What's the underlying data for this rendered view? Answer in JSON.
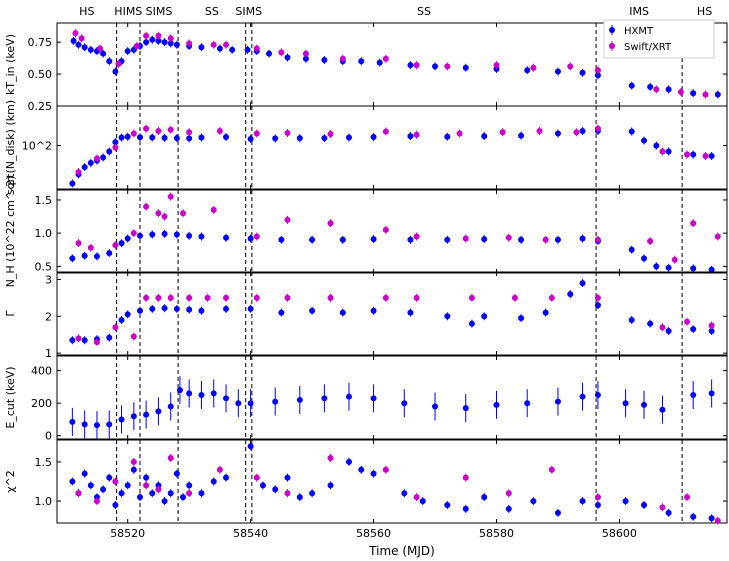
{
  "chart_data": {
    "type": "scatter",
    "xlabel": "Time (MJD)",
    "x_ticks": [
      58520,
      58540,
      58560,
      58580,
      58600
    ],
    "xlim": [
      58508.5,
      58617.5
    ],
    "states": [
      "HS",
      "HIMS",
      "SIMS",
      "SS",
      "SIMS",
      "SS",
      "IMS",
      "HS"
    ],
    "transitions_mjd": [
      58518.2,
      58522,
      58528.2,
      58539.2,
      58540.2,
      58596.2,
      58610.2
    ],
    "legend": {
      "position": "top-right",
      "entries": [
        "HXMT",
        "Swift/XRT"
      ]
    },
    "colors": {
      "HXMT": "#0000ff",
      "Swift/XRT": "#c800c8"
    },
    "panels": [
      {
        "ylabel": "kT_in (keV)",
        "ylim": [
          0.25,
          0.9
        ],
        "yticks": [
          "0.25",
          "0.50",
          "0.75"
        ],
        "ytick_values": [
          0.25,
          0.5,
          0.75
        ],
        "series": [
          {
            "name": "HXMT",
            "x": [
              58511.2,
              58512,
              58513,
              58514,
              58515,
              58516,
              58517,
              58518,
              58519,
              58520,
              58521,
              58522,
              58523,
              58524,
              58525,
              58526,
              58527,
              58528,
              58530,
              58532,
              58535,
              58537,
              58539.5,
              58541,
              58543,
              58546,
              58549,
              58552,
              58555,
              58558,
              58561,
              58566,
              58570,
              58575,
              58580,
              58585,
              58590,
              58594,
              58596.5,
              58602,
              58605,
              58608,
              58612,
              58616
            ],
            "y": [
              0.76,
              0.73,
              0.71,
              0.69,
              0.68,
              0.66,
              0.6,
              0.52,
              0.6,
              0.68,
              0.69,
              0.72,
              0.75,
              0.77,
              0.76,
              0.75,
              0.74,
              0.73,
              0.72,
              0.71,
              0.7,
              0.69,
              0.69,
              0.68,
              0.66,
              0.63,
              0.62,
              0.61,
              0.6,
              0.6,
              0.59,
              0.57,
              0.56,
              0.55,
              0.54,
              0.53,
              0.52,
              0.51,
              0.49,
              0.41,
              0.4,
              0.38,
              0.35,
              0.34
            ]
          },
          {
            "name": "Swift/XRT",
            "x": [
              58511.5,
              58512.5,
              58515.5,
              58518.5,
              58521.5,
              58523,
              58525,
              58527,
              58530,
              58534,
              58536,
              58541,
              58545,
              58549,
              58555,
              58562,
              58567,
              58572,
              58580,
              58586,
              58592,
              58596.5,
              58606,
              58610,
              58614
            ],
            "y": [
              0.82,
              0.78,
              0.7,
              0.58,
              0.72,
              0.8,
              0.8,
              0.78,
              0.74,
              0.73,
              0.73,
              0.7,
              0.67,
              0.66,
              0.62,
              0.62,
              0.57,
              0.56,
              0.57,
              0.55,
              0.56,
              0.53,
              0.38,
              0.36,
              0.34
            ]
          }
        ]
      },
      {
        "ylabel": "sqrt(N_disk) (km)",
        "log_scale": true,
        "ylim": [
          30,
          300
        ],
        "yticks": [
          "10^2"
        ],
        "ytick_values": [
          100
        ],
        "series": [
          {
            "name": "HXMT",
            "x": [
              58511,
              58512,
              58513,
              58514,
              58515,
              58516,
              58517,
              58518,
              58519,
              58520,
              58522,
              58524,
              58526,
              58528,
              58530,
              58532,
              58536,
              58540,
              58544,
              58548,
              58552,
              58556,
              58560,
              58566,
              58572,
              58578,
              58584,
              58590,
              58594,
              58596.5,
              58602,
              58604,
              58606,
              58608,
              58612,
              58615
            ],
            "y": [
              35,
              45,
              55,
              62,
              66,
              72,
              85,
              110,
              125,
              128,
              126,
              125,
              124,
              123,
              122,
              125,
              127,
              120,
              122,
              123,
              123,
              125,
              127,
              130,
              128,
              130,
              132,
              140,
              150,
              150,
              148,
              115,
              100,
              85,
              78,
              75
            ]
          },
          {
            "name": "Swift/XRT",
            "x": [
              58512,
              58515,
              58518,
              58521,
              58523,
              58525,
              58527,
              58530,
              58535,
              58541,
              58546,
              58553,
              58562,
              58567,
              58574,
              58581,
              58587,
              58593,
              58596.5,
              58607,
              58611,
              58614
            ],
            "y": [
              48,
              70,
              95,
              140,
              160,
              150,
              155,
              145,
              150,
              140,
              142,
              138,
              148,
              135,
              140,
              145,
              150,
              145,
              160,
              85,
              78,
              75
            ]
          }
        ]
      },
      {
        "ylabel": "N_H (10^22 cm^-2)",
        "ylim": [
          0.4,
          1.65
        ],
        "yticks": [
          "0.5",
          "1.0",
          "1.5"
        ],
        "ytick_values": [
          0.5,
          1.0,
          1.5
        ],
        "series": [
          {
            "name": "HXMT",
            "x": [
              58511,
              58513,
              58515,
              58517,
              58519,
              58520,
              58522,
              58524,
              58526,
              58528,
              58530,
              58532,
              58536,
              58540,
              58545,
              58550,
              58555,
              58560,
              58566,
              58572,
              58578,
              58584,
              58590,
              58594,
              58596.5,
              58602,
              58604,
              58606,
              58608,
              58612,
              58615
            ],
            "y": [
              0.62,
              0.66,
              0.65,
              0.7,
              0.85,
              0.92,
              0.96,
              0.98,
              0.99,
              0.98,
              0.96,
              0.95,
              0.93,
              0.92,
              0.9,
              0.9,
              0.9,
              0.91,
              0.9,
              0.9,
              0.91,
              0.9,
              0.9,
              0.92,
              0.88,
              0.75,
              0.62,
              0.5,
              0.48,
              0.47,
              0.45
            ]
          },
          {
            "name": "Swift/XRT",
            "x": [
              58512,
              58514,
              58518,
              58521,
              58523,
              58525,
              58526,
              58527,
              58529,
              58534,
              58541,
              58546,
              58553,
              58562,
              58567,
              58575,
              58582,
              58588,
              58596.5,
              58605,
              58609,
              58612,
              58616
            ],
            "y": [
              0.85,
              0.78,
              0.82,
              1.0,
              1.4,
              1.3,
              1.25,
              1.55,
              1.3,
              1.35,
              0.95,
              1.2,
              1.15,
              1.05,
              0.95,
              0.92,
              0.93,
              0.9,
              0.9,
              0.88,
              0.6,
              1.15,
              0.95
            ]
          }
        ]
      },
      {
        "ylabel": "Γ",
        "ylim": [
          0.95,
          3.2
        ],
        "yticks": [
          "1",
          "2",
          "3"
        ],
        "ytick_values": [
          1,
          2,
          3
        ],
        "series": [
          {
            "name": "HXMT",
            "x": [
              58511,
              58513,
              58515,
              58517,
              58519,
              58520,
              58522,
              58524,
              58526,
              58528,
              58530,
              58532,
              58536,
              58540,
              58545,
              58550,
              58555,
              58560,
              58566,
              58572,
              58576,
              58578,
              58584,
              58588,
              58592,
              58594,
              58596.5,
              58602,
              58605,
              58608,
              58612,
              58615
            ],
            "y": [
              1.35,
              1.35,
              1.38,
              1.42,
              1.9,
              2.05,
              2.15,
              2.2,
              2.22,
              2.2,
              2.18,
              2.15,
              2.2,
              2.2,
              2.1,
              2.15,
              2.1,
              2.15,
              2.1,
              2.0,
              1.8,
              2.0,
              1.95,
              2.1,
              2.6,
              2.9,
              2.3,
              1.9,
              1.8,
              1.6,
              1.65,
              1.6
            ]
          },
          {
            "name": "Swift/XRT",
            "x": [
              58512,
              58515,
              58518,
              58521,
              58523,
              58525,
              58527,
              58530,
              58533,
              58536,
              58541,
              58546,
              58553,
              58562,
              58567,
              58576,
              58583,
              58589,
              58596.5,
              58607,
              58611,
              58615
            ],
            "y": [
              1.4,
              1.3,
              1.7,
              1.45,
              2.5,
              2.5,
              2.5,
              2.5,
              2.5,
              2.5,
              2.5,
              2.5,
              2.5,
              2.5,
              2.5,
              2.5,
              2.5,
              2.5,
              2.5,
              1.7,
              1.85,
              1.75
            ]
          }
        ]
      },
      {
        "ylabel": "E_cut (keV)",
        "ylim": [
          -20,
          490
        ],
        "yticks": [
          "0",
          "200",
          "400"
        ],
        "ytick_values": [
          0,
          200,
          400
        ],
        "series": [
          {
            "name": "HXMT",
            "x": [
              58511,
              58513,
              58515,
              58517,
              58519,
              58521,
              58523,
              58525,
              58527,
              58528.5,
              58530,
              58532,
              58534,
              58536,
              58538,
              58540,
              58544,
              58548,
              58552,
              58556,
              58560,
              58565,
              58570,
              58575,
              58580,
              58585,
              58590,
              58594,
              58596.5,
              58601,
              58604,
              58607,
              58612,
              58615
            ],
            "y": [
              85,
              70,
              65,
              70,
              100,
              120,
              130,
              150,
              180,
              280,
              260,
              250,
              260,
              230,
              200,
              200,
              210,
              220,
              230,
              240,
              230,
              200,
              180,
              170,
              190,
              200,
              210,
              240,
              250,
              200,
              190,
              160,
              250,
              260
            ]
          }
        ]
      },
      {
        "ylabel": "χ^2",
        "ylim": [
          0.72,
          1.78
        ],
        "yticks": [
          "1.0",
          "1.5"
        ],
        "ytick_values": [
          1.0,
          1.5
        ],
        "series": [
          {
            "name": "HXMT",
            "x": [
              58511,
              58512,
              58513,
              58514,
              58515,
              58516,
              58517,
              58518,
              58519,
              58520,
              58521,
              58522,
              58523,
              58524,
              58525,
              58526,
              58527,
              58528,
              58529,
              58530,
              58532,
              58534,
              58536,
              58540,
              58542,
              58544,
              58546,
              58548,
              58550,
              58553,
              58556,
              58558,
              58560,
              58565,
              58568,
              58572,
              58575,
              58578,
              58582,
              58586,
              58590,
              58594,
              58596.5,
              58601,
              58604,
              58608,
              58612,
              58615
            ],
            "y": [
              1.25,
              1.1,
              1.35,
              1.2,
              1.05,
              1.15,
              1.3,
              0.95,
              1.1,
              1.2,
              1.4,
              1.05,
              1.3,
              1.1,
              1.2,
              1.0,
              1.1,
              1.35,
              1.05,
              1.2,
              1.1,
              1.25,
              1.3,
              1.7,
              1.2,
              1.15,
              1.3,
              1.05,
              1.1,
              1.2,
              1.5,
              1.4,
              1.35,
              1.1,
              1.0,
              0.95,
              0.9,
              1.05,
              0.9,
              1.0,
              0.85,
              1.0,
              0.95,
              1.0,
              0.95,
              0.85,
              0.8,
              0.78
            ]
          },
          {
            "name": "Swift/XRT",
            "x": [
              58512,
              58515,
              58518,
              58521,
              58523,
              58525,
              58527,
              58530,
              58535,
              58541,
              58546,
              58553,
              58562,
              58567,
              58575,
              58582,
              58589,
              58596.5,
              58607,
              58611,
              58616
            ],
            "y": [
              1.1,
              1.0,
              1.25,
              1.5,
              1.2,
              1.15,
              1.55,
              1.1,
              1.4,
              1.3,
              1.1,
              1.55,
              1.4,
              1.05,
              1.3,
              1.1,
              1.4,
              1.05,
              0.92,
              1.05,
              0.75
            ]
          }
        ]
      }
    ]
  }
}
